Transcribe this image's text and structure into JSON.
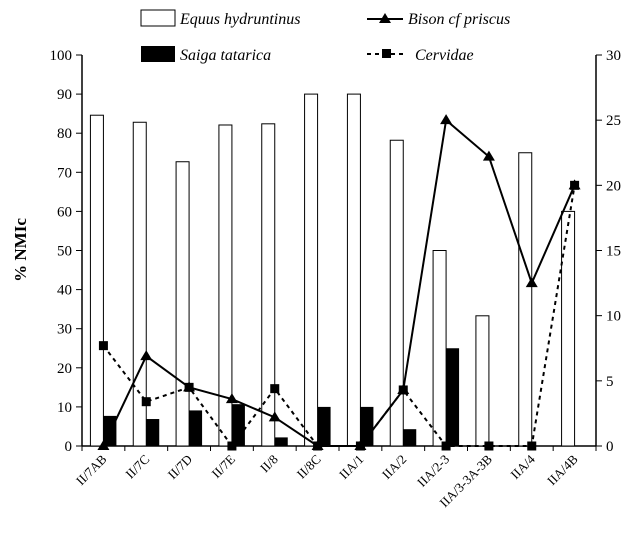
{
  "chart_data": {
    "type": "bar",
    "ylabel": "% NMIc",
    "ylim": [
      0,
      100
    ],
    "y_ticks": [
      0,
      10,
      20,
      30,
      40,
      50,
      60,
      70,
      80,
      90,
      100
    ],
    "y2lim": [
      0,
      30
    ],
    "y2_ticks": [
      0,
      5,
      10,
      15,
      20,
      25,
      30
    ],
    "categories": [
      "II/7AB",
      "II/7C",
      "II/7D",
      "II/7E",
      "II/8",
      "II/8C",
      "IIA/1",
      "IIA/2",
      "IIA/2-3",
      "IIA/3-3A-3B",
      "IIA/4",
      "IIA/4B"
    ],
    "legend": {
      "equus": "Equus hydruntinus",
      "bison": "Bison cf priscus",
      "saiga": "Saiga tatarica",
      "cervidae": "Cervidae"
    },
    "series": [
      {
        "name": "Equus hydruntinus",
        "type": "bar",
        "style": "open",
        "axis": "left",
        "values": [
          84.6,
          82.8,
          72.7,
          82.1,
          82.4,
          90,
          90,
          78.2,
          50,
          33.3,
          75,
          60
        ]
      },
      {
        "name": "Saiga tatarica",
        "type": "bar",
        "style": "filled",
        "axis": "left",
        "values": [
          7.7,
          6.9,
          9.1,
          10.7,
          2.2,
          10,
          10,
          4.3,
          25,
          0,
          0,
          0
        ]
      },
      {
        "name": "Bison cf priscus",
        "type": "line",
        "style": "solid-triangle",
        "axis": "right",
        "values": [
          0,
          6.9,
          4.5,
          3.6,
          2.2,
          0,
          0,
          4.3,
          25,
          22.2,
          12.5,
          20
        ]
      },
      {
        "name": "Cervidae",
        "type": "line",
        "style": "dotted-square",
        "axis": "right",
        "values": [
          7.7,
          3.4,
          4.5,
          0,
          4.4,
          0,
          0,
          4.3,
          0,
          0,
          0,
          20
        ]
      }
    ],
    "colors": {
      "ink": "#000000",
      "open_bar_fill": "#ffffff"
    }
  }
}
